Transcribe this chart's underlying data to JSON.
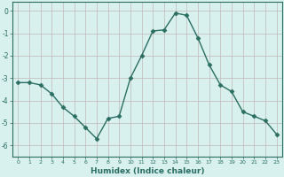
{
  "x": [
    0,
    1,
    2,
    3,
    4,
    5,
    6,
    7,
    8,
    9,
    10,
    11,
    12,
    13,
    14,
    15,
    16,
    17,
    18,
    19,
    20,
    21,
    22,
    23
  ],
  "y": [
    -3.2,
    -3.2,
    -3.3,
    -3.7,
    -4.3,
    -4.7,
    -5.2,
    -5.7,
    -4.8,
    -4.7,
    -3.0,
    -2.0,
    -0.9,
    -0.85,
    -0.1,
    -0.2,
    -1.2,
    -2.4,
    -3.3,
    -3.6,
    -4.5,
    -4.7,
    -4.9,
    -5.5
  ],
  "line_color": "#2a6e62",
  "marker": "D",
  "marker_size": 2.5,
  "bg_color": "#d8f0ee",
  "grid_color": "#c0b8b8",
  "axis_color": "#2a6e62",
  "xlabel": "Humidex (Indice chaleur)",
  "xlim_min": -0.5,
  "xlim_max": 23.5,
  "ylim": [
    -6.5,
    0.4
  ],
  "yticks": [
    0,
    -1,
    -2,
    -3,
    -4,
    -5,
    -6
  ],
  "xticks": [
    0,
    1,
    2,
    3,
    4,
    5,
    6,
    7,
    8,
    9,
    10,
    11,
    12,
    13,
    14,
    15,
    16,
    17,
    18,
    19,
    20,
    21,
    22,
    23
  ]
}
